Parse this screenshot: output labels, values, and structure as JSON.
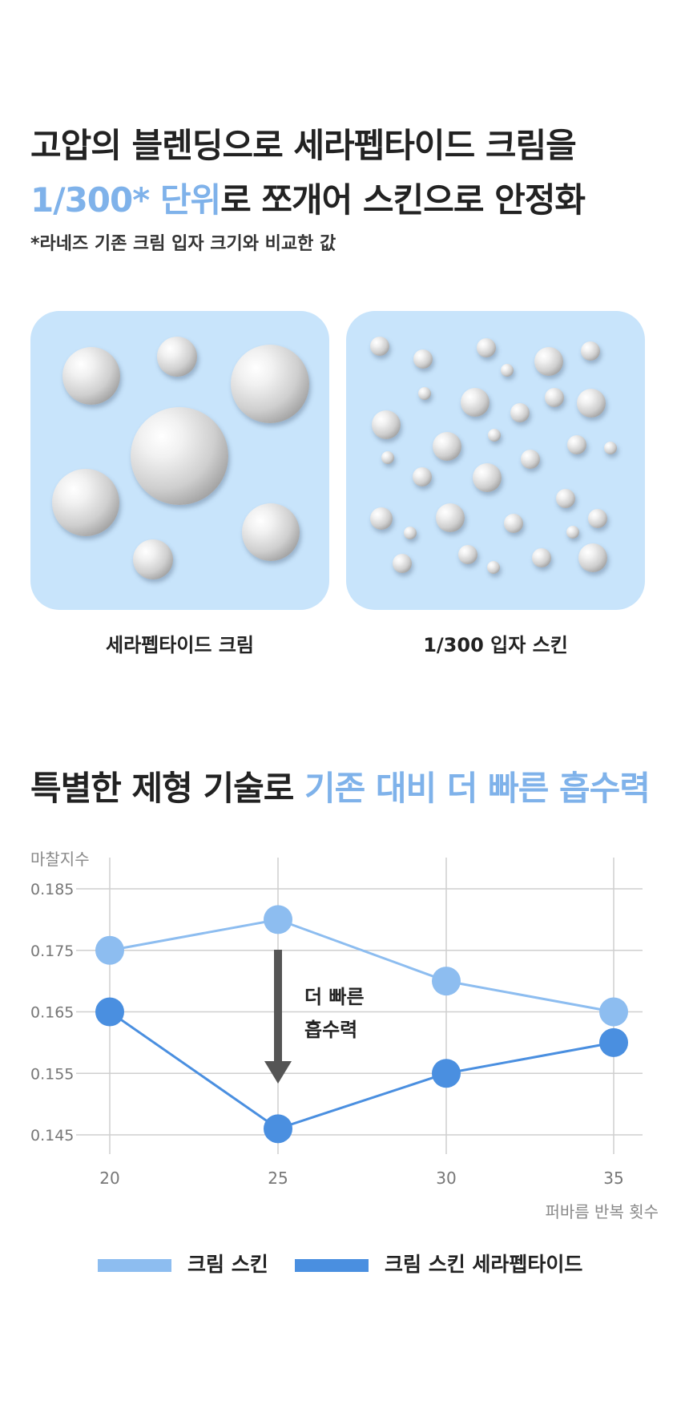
{
  "header": {
    "line1": "고압의 블렌딩으로 세라펩타이드 크림을",
    "line2_highlight": "1/300* 단위",
    "line2_rest": "로 쪼개어 스킨으로 안정화",
    "footnote": "*라네즈 기존 크림 입자 크기와 비교한 값"
  },
  "panels": {
    "left_caption": "세라펩타이드 크림",
    "right_caption": "1/300 입자 스킨"
  },
  "section2": {
    "title": "특별한 제형 기술로 ",
    "title_highlight": "기존 대비 더 빠른 흡수력"
  },
  "colors": {
    "panel_bg": "#c8e4fb",
    "highlight": "#7fb2ea",
    "series_light": "#8dbdf0",
    "series_dark": "#4a8fe0",
    "arrow": "#555555"
  },
  "chart_data": {
    "type": "line",
    "ylabel": "마찰지수",
    "xlabel": "퍼바름 반복 횟수",
    "x": [
      20,
      25,
      30,
      35
    ],
    "ylim": [
      0.145,
      0.185
    ],
    "yticks": [
      "0.185",
      "0.175",
      "0.165",
      "0.155",
      "0.145"
    ],
    "grid": true,
    "legend_position": "bottom",
    "series": [
      {
        "name": "크림 스킨",
        "values": [
          0.175,
          0.18,
          0.17,
          0.165
        ]
      },
      {
        "name": "크림 스킨 세라펩타이드",
        "values": [
          0.165,
          0.146,
          0.155,
          0.16
        ]
      }
    ],
    "annotation": {
      "line1": "더 빠른",
      "line2": "흡수력"
    }
  }
}
